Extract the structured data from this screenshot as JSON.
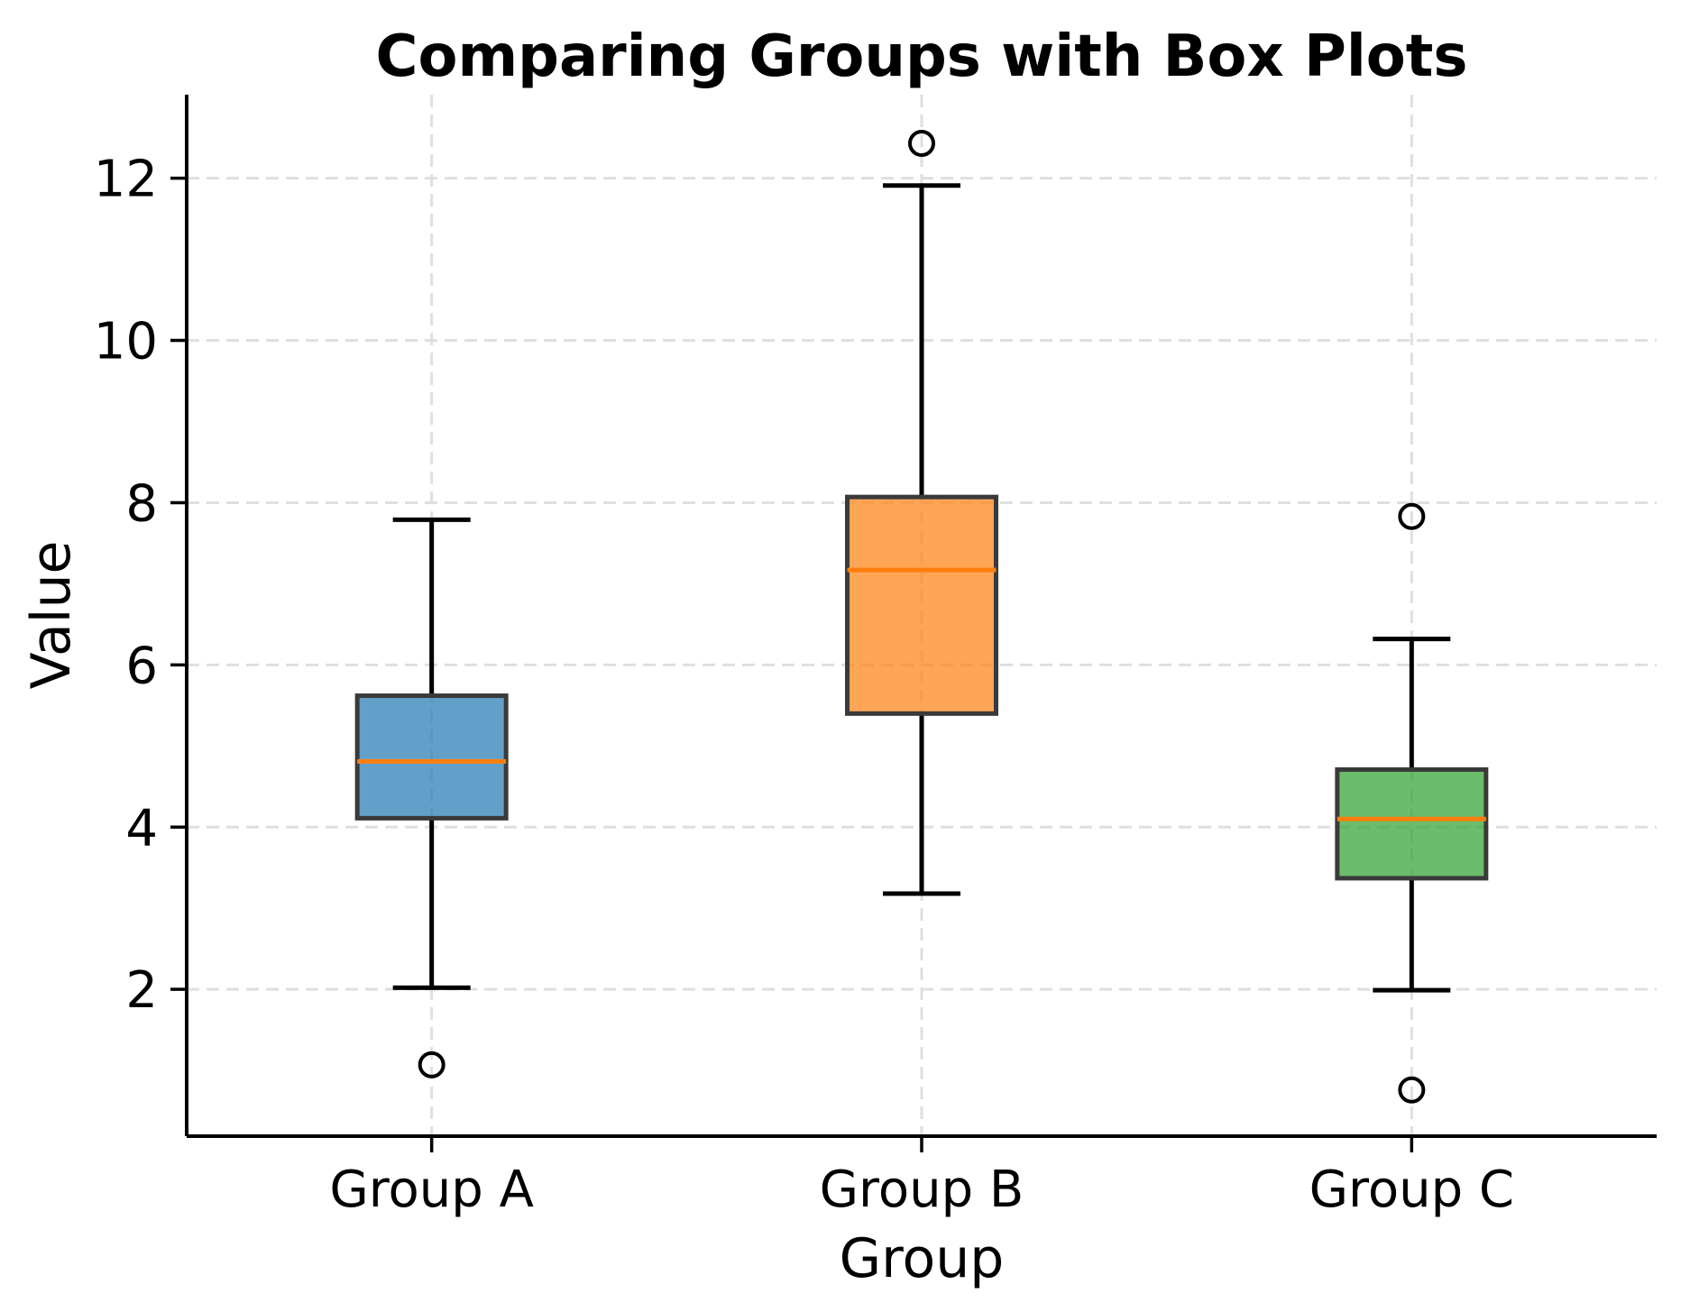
{
  "chart_data": {
    "type": "boxplot",
    "title": "Comparing Groups with Box Plots",
    "xlabel": "Group",
    "ylabel": "Value",
    "categories": [
      "Group A",
      "Group B",
      "Group C"
    ],
    "yticks": [
      2,
      4,
      6,
      8,
      10,
      12
    ],
    "ylim": [
      0.19,
      13.03
    ],
    "grid": true,
    "grid_color": "#DFDFDF",
    "background_color": "#FFFFFF",
    "spine_color": "#000000",
    "whisker_color": "#000000",
    "box_edge_color": "#3A3A3A",
    "median_color": "#FF7F0E",
    "fill_alpha": 0.7,
    "series": [
      {
        "name": "Group A",
        "color": "#1F77B4",
        "whisker_low": 2.02,
        "q1": 4.11,
        "median": 4.81,
        "q3": 5.62,
        "whisker_high": 7.79,
        "outliers": [
          1.07
        ]
      },
      {
        "name": "Group B",
        "color": "#FF7F0E",
        "whisker_low": 3.18,
        "q1": 5.4,
        "median": 7.17,
        "q3": 8.07,
        "whisker_high": 11.91,
        "outliers": [
          12.43
        ]
      },
      {
        "name": "Group C",
        "color": "#2CA02C",
        "whisker_low": 1.99,
        "q1": 3.37,
        "median": 4.1,
        "q3": 4.71,
        "whisker_high": 6.32,
        "outliers": [
          7.83,
          0.76
        ]
      }
    ]
  }
}
